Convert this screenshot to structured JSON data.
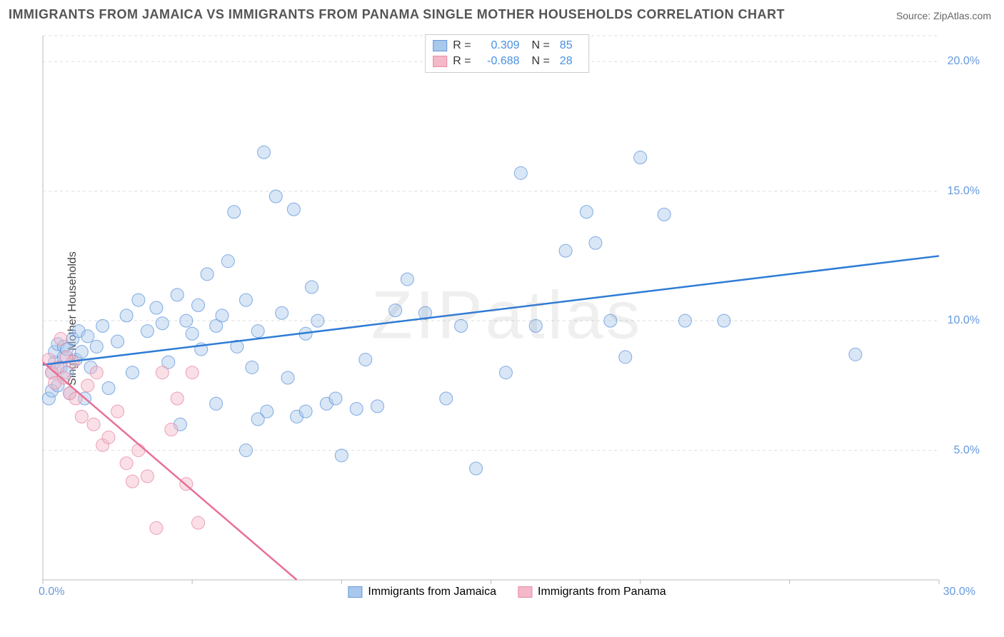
{
  "title": "IMMIGRANTS FROM JAMAICA VS IMMIGRANTS FROM PANAMA SINGLE MOTHER HOUSEHOLDS CORRELATION CHART",
  "source": "Source: ZipAtlas.com",
  "y_axis_label": "Single Mother Households",
  "watermark": "ZIPatlas",
  "chart": {
    "type": "scatter",
    "background_color": "#ffffff",
    "grid_color": "#dddddd",
    "xlim": [
      0,
      30
    ],
    "ylim": [
      0,
      21
    ],
    "x_ticks": [
      0,
      5,
      10,
      15,
      20,
      25,
      30
    ],
    "x_tick_labels_shown": {
      "left": "0.0%",
      "right": "30.0%"
    },
    "y_ticks": [
      5,
      10,
      15,
      20
    ],
    "y_tick_labels": [
      "5.0%",
      "10.0%",
      "15.0%",
      "20.0%"
    ],
    "marker_radius": 9,
    "marker_opacity": 0.45,
    "line_width": 2.5,
    "series": [
      {
        "name": "Immigrants from Jamaica",
        "color_fill": "#a8c8ec",
        "color_stroke": "#6699dd",
        "r": 0.309,
        "n": 85,
        "regression": {
          "x1": 0,
          "y1": 8.3,
          "x2": 30,
          "y2": 12.5
        },
        "points": [
          [
            0.2,
            7.0
          ],
          [
            0.3,
            7.3
          ],
          [
            0.3,
            8.0
          ],
          [
            0.4,
            8.4
          ],
          [
            0.4,
            8.8
          ],
          [
            0.5,
            7.5
          ],
          [
            0.5,
            9.1
          ],
          [
            0.6,
            8.2
          ],
          [
            0.7,
            8.6
          ],
          [
            0.7,
            9.0
          ],
          [
            0.8,
            8.0
          ],
          [
            0.8,
            8.9
          ],
          [
            0.9,
            7.2
          ],
          [
            1.0,
            9.3
          ],
          [
            1.1,
            8.5
          ],
          [
            1.2,
            9.6
          ],
          [
            1.3,
            8.8
          ],
          [
            1.4,
            7.0
          ],
          [
            1.5,
            9.4
          ],
          [
            1.6,
            8.2
          ],
          [
            1.8,
            9.0
          ],
          [
            2.0,
            9.8
          ],
          [
            2.2,
            7.4
          ],
          [
            2.5,
            9.2
          ],
          [
            2.8,
            10.2
          ],
          [
            3.0,
            8.0
          ],
          [
            3.2,
            10.8
          ],
          [
            3.5,
            9.6
          ],
          [
            3.8,
            10.5
          ],
          [
            4.0,
            9.9
          ],
          [
            4.2,
            8.4
          ],
          [
            4.5,
            11.0
          ],
          [
            4.8,
            10.0
          ],
          [
            5.0,
            9.5
          ],
          [
            5.2,
            10.6
          ],
          [
            5.3,
            8.9
          ],
          [
            5.5,
            11.8
          ],
          [
            5.8,
            9.8
          ],
          [
            6.0,
            10.2
          ],
          [
            6.2,
            12.3
          ],
          [
            6.4,
            14.2
          ],
          [
            6.5,
            9.0
          ],
          [
            6.8,
            10.8
          ],
          [
            7.0,
            8.2
          ],
          [
            7.2,
            9.6
          ],
          [
            7.4,
            16.5
          ],
          [
            7.5,
            6.5
          ],
          [
            7.8,
            14.8
          ],
          [
            8.0,
            10.3
          ],
          [
            8.2,
            7.8
          ],
          [
            8.4,
            14.3
          ],
          [
            8.5,
            6.3
          ],
          [
            8.8,
            9.5
          ],
          [
            9.0,
            11.3
          ],
          [
            9.2,
            10.0
          ],
          [
            9.5,
            6.8
          ],
          [
            9.8,
            7.0
          ],
          [
            10.0,
            4.8
          ],
          [
            10.5,
            6.6
          ],
          [
            10.8,
            8.5
          ],
          [
            11.2,
            6.7
          ],
          [
            11.8,
            10.4
          ],
          [
            12.2,
            11.6
          ],
          [
            12.8,
            10.3
          ],
          [
            13.5,
            7.0
          ],
          [
            14.0,
            9.8
          ],
          [
            14.5,
            4.3
          ],
          [
            15.5,
            8.0
          ],
          [
            16.0,
            15.7
          ],
          [
            16.5,
            9.8
          ],
          [
            17.5,
            12.7
          ],
          [
            18.2,
            14.2
          ],
          [
            18.5,
            13.0
          ],
          [
            19.0,
            10.0
          ],
          [
            19.5,
            8.6
          ],
          [
            20.0,
            16.3
          ],
          [
            20.8,
            14.1
          ],
          [
            21.5,
            10.0
          ],
          [
            22.8,
            10.0
          ],
          [
            27.2,
            8.7
          ],
          [
            4.6,
            6.0
          ],
          [
            5.8,
            6.8
          ],
          [
            6.8,
            5.0
          ],
          [
            7.2,
            6.2
          ],
          [
            8.8,
            6.5
          ]
        ]
      },
      {
        "name": "Immigrants from Panama",
        "color_fill": "#f4b8c8",
        "color_stroke": "#e88ba8",
        "r": -0.688,
        "n": 28,
        "regression": {
          "x1": 0,
          "y1": 8.4,
          "x2": 8.5,
          "y2": 0
        },
        "points": [
          [
            0.2,
            8.5
          ],
          [
            0.3,
            8.0
          ],
          [
            0.4,
            7.6
          ],
          [
            0.5,
            8.2
          ],
          [
            0.6,
            9.3
          ],
          [
            0.7,
            7.8
          ],
          [
            0.8,
            8.6
          ],
          [
            0.9,
            7.2
          ],
          [
            1.0,
            8.4
          ],
          [
            1.1,
            7.0
          ],
          [
            1.3,
            6.3
          ],
          [
            1.5,
            7.5
          ],
          [
            1.7,
            6.0
          ],
          [
            1.8,
            8.0
          ],
          [
            2.0,
            5.2
          ],
          [
            2.2,
            5.5
          ],
          [
            2.5,
            6.5
          ],
          [
            2.8,
            4.5
          ],
          [
            3.0,
            3.8
          ],
          [
            3.2,
            5.0
          ],
          [
            3.5,
            4.0
          ],
          [
            3.8,
            2.0
          ],
          [
            4.0,
            8.0
          ],
          [
            4.3,
            5.8
          ],
          [
            4.8,
            3.7
          ],
          [
            5.2,
            2.2
          ],
          [
            5.0,
            8.0
          ],
          [
            4.5,
            7.0
          ]
        ]
      }
    ]
  },
  "legend_bottom": [
    {
      "label": "Immigrants from Jamaica",
      "fill": "#a8c8ec",
      "stroke": "#6699dd"
    },
    {
      "label": "Immigrants from Panama",
      "fill": "#f4b8c8",
      "stroke": "#e88ba8"
    }
  ]
}
